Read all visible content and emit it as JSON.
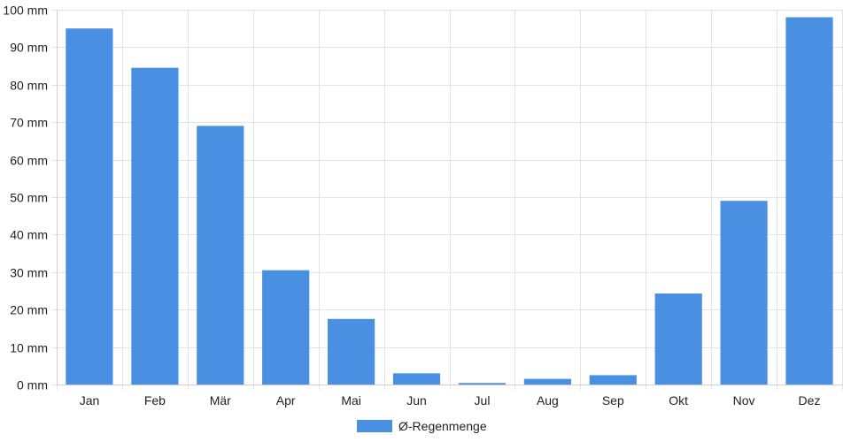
{
  "chart_data": {
    "type": "bar",
    "categories": [
      "Jan",
      "Feb",
      "Mär",
      "Apr",
      "Mai",
      "Jun",
      "Jul",
      "Aug",
      "Sep",
      "Okt",
      "Nov",
      "Dez"
    ],
    "series": [
      {
        "name": "Ø-Regenmenge",
        "values": [
          95,
          84.5,
          69,
          30.5,
          17.5,
          3,
          0.4,
          1.5,
          2.5,
          24.3,
          49,
          98
        ],
        "color": "#4a90e2"
      }
    ],
    "ylim": [
      0,
      100
    ],
    "y_ticks": [
      0,
      10,
      20,
      30,
      40,
      50,
      60,
      70,
      80,
      90,
      100
    ],
    "y_unit": "mm",
    "grid": true,
    "legend_position": "bottom-center"
  }
}
